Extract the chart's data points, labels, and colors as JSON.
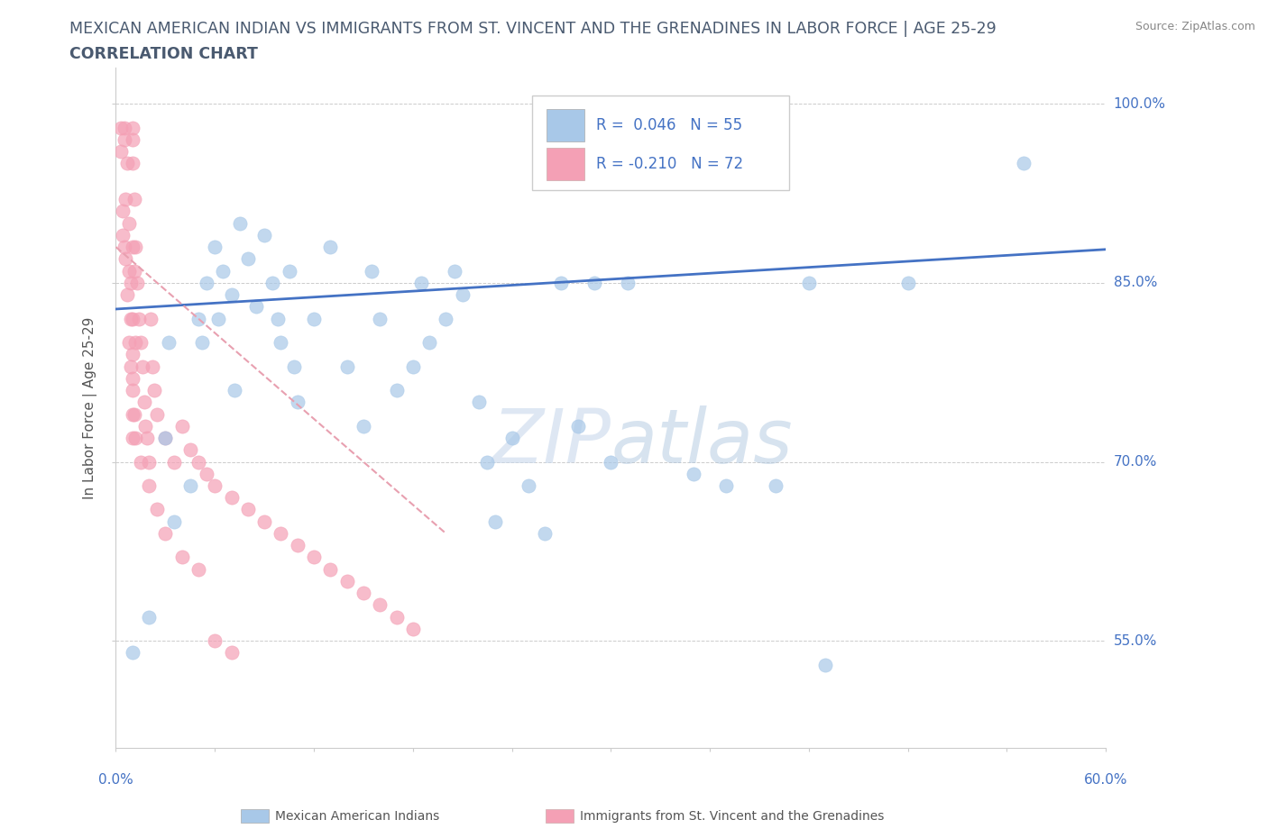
{
  "title_line1": "MEXICAN AMERICAN INDIAN VS IMMIGRANTS FROM ST. VINCENT AND THE GRENADINES IN LABOR FORCE | AGE 25-29",
  "title_line2": "CORRELATION CHART",
  "source": "Source: ZipAtlas.com",
  "ylabel": "In Labor Force | Age 25-29",
  "color_blue": "#a8c8e8",
  "color_pink": "#f4a0b5",
  "color_blue_line": "#4472c4",
  "color_pink_line": "#e8a0b0",
  "color_text": "#4472c4",
  "color_title": "#4a5a70",
  "watermark_color": "#d8e8f5",
  "blue_x": [
    1.0,
    2.0,
    3.5,
    5.0,
    5.5,
    6.0,
    6.5,
    7.0,
    7.5,
    8.0,
    8.5,
    9.0,
    9.5,
    10.0,
    10.5,
    11.0,
    12.0,
    13.0,
    14.0,
    15.0,
    15.5,
    16.0,
    17.0,
    18.0,
    18.5,
    19.0,
    20.0,
    20.5,
    21.0,
    22.0,
    22.5,
    23.0,
    24.0,
    25.0,
    26.0,
    27.0,
    28.0,
    29.0,
    30.0,
    31.0,
    35.0,
    37.0,
    40.0,
    42.0,
    43.0,
    48.0,
    55.0,
    3.0,
    3.2,
    4.5,
    5.2,
    6.2,
    7.2,
    9.8,
    10.8
  ],
  "blue_y": [
    0.54,
    0.57,
    0.65,
    0.82,
    0.85,
    0.88,
    0.86,
    0.84,
    0.9,
    0.87,
    0.83,
    0.89,
    0.85,
    0.8,
    0.86,
    0.75,
    0.82,
    0.88,
    0.78,
    0.73,
    0.86,
    0.82,
    0.76,
    0.78,
    0.85,
    0.8,
    0.82,
    0.86,
    0.84,
    0.75,
    0.7,
    0.65,
    0.72,
    0.68,
    0.64,
    0.85,
    0.73,
    0.85,
    0.7,
    0.85,
    0.69,
    0.68,
    0.68,
    0.85,
    0.53,
    0.85,
    0.95,
    0.72,
    0.8,
    0.68,
    0.8,
    0.82,
    0.76,
    0.82,
    0.78
  ],
  "pink_x": [
    0.3,
    0.3,
    0.5,
    0.5,
    0.5,
    0.6,
    0.6,
    0.7,
    0.7,
    0.8,
    0.8,
    0.9,
    0.9,
    1.0,
    1.0,
    1.0,
    1.0,
    1.0,
    1.1,
    1.1,
    1.2,
    1.2,
    1.3,
    1.4,
    1.5,
    1.6,
    1.7,
    1.8,
    1.9,
    2.0,
    2.1,
    2.2,
    2.3,
    2.5,
    3.0,
    3.5,
    4.0,
    4.5,
    5.0,
    5.5,
    6.0,
    7.0,
    8.0,
    9.0,
    10.0,
    11.0,
    12.0,
    13.0,
    14.0,
    15.0,
    16.0,
    17.0,
    18.0,
    1.0,
    1.0,
    1.0,
    0.4,
    0.4,
    0.8,
    0.9,
    1.0,
    1.0,
    1.1,
    1.2,
    1.5,
    2.0,
    2.5,
    3.0,
    4.0,
    5.0,
    6.0,
    7.0
  ],
  "pink_y": [
    0.98,
    0.96,
    0.98,
    0.97,
    0.88,
    0.92,
    0.87,
    0.95,
    0.84,
    0.9,
    0.8,
    0.85,
    0.78,
    0.98,
    0.97,
    0.95,
    0.88,
    0.82,
    0.92,
    0.86,
    0.88,
    0.8,
    0.85,
    0.82,
    0.8,
    0.78,
    0.75,
    0.73,
    0.72,
    0.7,
    0.82,
    0.78,
    0.76,
    0.74,
    0.72,
    0.7,
    0.73,
    0.71,
    0.7,
    0.69,
    0.68,
    0.67,
    0.66,
    0.65,
    0.64,
    0.63,
    0.62,
    0.61,
    0.6,
    0.59,
    0.58,
    0.57,
    0.56,
    0.76,
    0.74,
    0.72,
    0.91,
    0.89,
    0.86,
    0.82,
    0.79,
    0.77,
    0.74,
    0.72,
    0.7,
    0.68,
    0.66,
    0.64,
    0.62,
    0.61,
    0.55,
    0.54
  ],
  "blue_trend_x": [
    0,
    60
  ],
  "blue_trend_y": [
    0.828,
    0.878
  ],
  "pink_trend_x": [
    0,
    20
  ],
  "pink_trend_y": [
    0.88,
    0.64
  ],
  "xlim": [
    0,
    60
  ],
  "ylim": [
    0.46,
    1.03
  ],
  "yticks": [
    0.55,
    0.7,
    0.85,
    1.0
  ],
  "ytick_labels": [
    "55.0%",
    "70.0%",
    "85.0%",
    "100.0%"
  ],
  "xticks": [
    0,
    6,
    12,
    18,
    24,
    30,
    36,
    42,
    48,
    54,
    60
  ]
}
